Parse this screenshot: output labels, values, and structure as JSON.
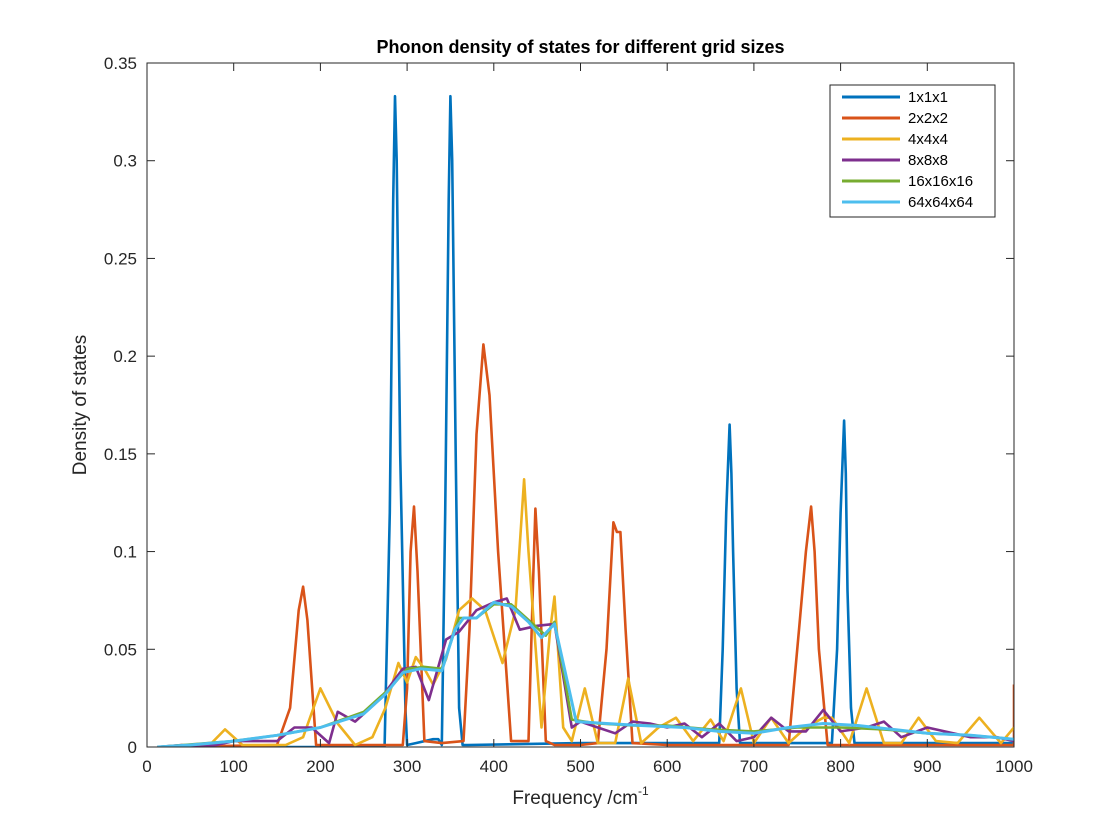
{
  "chart_data": {
    "type": "line",
    "title": "Phonon density of states for different grid sizes",
    "xlabel": "Frequency /cm",
    "xlabel_superscript": "-1",
    "ylabel": "Density of states",
    "xlim": [
      0,
      1000
    ],
    "ylim": [
      0,
      0.35
    ],
    "xticks": [
      0,
      100,
      200,
      300,
      400,
      500,
      600,
      700,
      800,
      900,
      1000
    ],
    "xtick_labels": [
      "0",
      "100",
      "200",
      "300",
      "400",
      "500",
      "600",
      "700",
      "800",
      "900",
      "1000"
    ],
    "yticks": [
      0,
      0.05,
      0.1,
      0.15,
      0.2,
      0.25,
      0.3,
      0.35
    ],
    "ytick_labels": [
      "0",
      "0.05",
      "0.1",
      "0.15",
      "0.2",
      "0.25",
      "0.3",
      "0.35"
    ],
    "grid": false,
    "legend_position": "top-right",
    "series": [
      {
        "name": "1x1x1",
        "color": "#0072BD",
        "x": [
          12,
          270,
          274,
          280,
          284,
          286,
          288,
          292,
          298,
          300,
          310,
          330,
          336,
          340,
          344,
          348,
          350,
          352,
          356,
          360,
          364,
          370,
          500,
          660,
          664,
          668,
          672,
          674,
          676,
          680,
          684,
          690,
          780,
          790,
          796,
          800,
          804,
          806,
          808,
          812,
          816,
          820,
          1000
        ],
        "y": [
          0,
          0,
          0.0005,
          0.12,
          0.28,
          0.333,
          0.3,
          0.15,
          0.02,
          0.001,
          0.002,
          0.004,
          0.004,
          0.001,
          0.12,
          0.28,
          0.333,
          0.3,
          0.15,
          0.02,
          0.001,
          0.001,
          0.002,
          0.002,
          0.05,
          0.12,
          0.165,
          0.14,
          0.1,
          0.03,
          0.002,
          0.002,
          0.002,
          0.002,
          0.05,
          0.12,
          0.167,
          0.14,
          0.08,
          0.02,
          0.002,
          0.002,
          0.002
        ]
      },
      {
        "name": "2x2x2",
        "color": "#D95319",
        "x": [
          12,
          150,
          165,
          175,
          180,
          185,
          195,
          260,
          285,
          295,
          300,
          304,
          308,
          312,
          320,
          340,
          365,
          372,
          380,
          388,
          395,
          405,
          420,
          440,
          445,
          448,
          452,
          460,
          470,
          500,
          520,
          530,
          538,
          542,
          546,
          552,
          560,
          600,
          740,
          752,
          760,
          766,
          770,
          775,
          785,
          1000,
          1000
        ],
        "y": [
          0,
          0.001,
          0.02,
          0.07,
          0.082,
          0.065,
          0.001,
          0.001,
          0.001,
          0.001,
          0.03,
          0.1,
          0.123,
          0.09,
          0.003,
          0.002,
          0.003,
          0.06,
          0.16,
          0.206,
          0.18,
          0.1,
          0.003,
          0.003,
          0.08,
          0.122,
          0.09,
          0.003,
          0.001,
          0.001,
          0.002,
          0.05,
          0.115,
          0.11,
          0.11,
          0.06,
          0.002,
          0.001,
          0.001,
          0.06,
          0.1,
          0.123,
          0.1,
          0.05,
          0.001,
          0.001,
          0.032
        ]
      },
      {
        "name": "4x4x4",
        "color": "#EDB120",
        "x": [
          12,
          70,
          90,
          110,
          140,
          160,
          180,
          200,
          220,
          240,
          260,
          275,
          290,
          300,
          310,
          320,
          330,
          345,
          360,
          375,
          390,
          410,
          425,
          435,
          440,
          455,
          465,
          470,
          480,
          490,
          505,
          520,
          540,
          555,
          570,
          590,
          610,
          630,
          650,
          665,
          685,
          700,
          720,
          740,
          760,
          780,
          790,
          810,
          830,
          850,
          870,
          890,
          910,
          935,
          960,
          985,
          1000
        ],
        "y": [
          0,
          0,
          0.009,
          0.001,
          0.001,
          0.001,
          0.005,
          0.03,
          0.012,
          0.001,
          0.005,
          0.02,
          0.043,
          0.033,
          0.046,
          0.04,
          0.032,
          0.045,
          0.07,
          0.076,
          0.07,
          0.043,
          0.07,
          0.137,
          0.1,
          0.01,
          0.06,
          0.077,
          0.01,
          0.003,
          0.03,
          0.002,
          0.002,
          0.035,
          0.002,
          0.01,
          0.015,
          0.003,
          0.014,
          0.003,
          0.03,
          0.002,
          0.015,
          0.002,
          0.01,
          0.015,
          0.015,
          0.002,
          0.03,
          0.002,
          0.002,
          0.015,
          0.003,
          0.002,
          0.015,
          0.002,
          0.01
        ]
      },
      {
        "name": "8x8x8",
        "color": "#7E2F8E",
        "x": [
          12,
          40,
          60,
          80,
          100,
          130,
          150,
          170,
          190,
          210,
          220,
          240,
          270,
          295,
          310,
          325,
          345,
          360,
          380,
          400,
          415,
          430,
          450,
          470,
          490,
          500,
          520,
          540,
          560,
          580,
          600,
          620,
          640,
          660,
          680,
          700,
          720,
          740,
          760,
          780,
          800,
          830,
          850,
          870,
          900,
          950,
          980,
          1000
        ],
        "y": [
          0,
          0.001,
          0,
          0.001,
          0.003,
          0.003,
          0.003,
          0.01,
          0.01,
          0.002,
          0.018,
          0.013,
          0.025,
          0.04,
          0.041,
          0.024,
          0.055,
          0.059,
          0.07,
          0.074,
          0.076,
          0.06,
          0.062,
          0.063,
          0.01,
          0.013,
          0.01,
          0.007,
          0.013,
          0.012,
          0.01,
          0.012,
          0.005,
          0.012,
          0.003,
          0.005,
          0.015,
          0.008,
          0.008,
          0.019,
          0.008,
          0.01,
          0.013,
          0.005,
          0.01,
          0.005,
          0.005,
          0.003
        ]
      },
      {
        "name": "16x16x16",
        "color": "#77AC30",
        "x": [
          12,
          100,
          150,
          200,
          250,
          280,
          300,
          320,
          340,
          360,
          380,
          400,
          420,
          440,
          460,
          470,
          490,
          520,
          560,
          600,
          650,
          700,
          750,
          800,
          850,
          900,
          950,
          1000
        ],
        "y": [
          0,
          0.003,
          0.006,
          0.01,
          0.018,
          0.03,
          0.04,
          0.041,
          0.04,
          0.066,
          0.066,
          0.073,
          0.073,
          0.065,
          0.057,
          0.064,
          0.014,
          0.012,
          0.011,
          0.011,
          0.009,
          0.008,
          0.01,
          0.01,
          0.009,
          0.007,
          0.006,
          0.004
        ]
      },
      {
        "name": "64x64x64",
        "color": "#4DBEEE",
        "x": [
          12,
          50,
          100,
          150,
          200,
          250,
          275,
          295,
          315,
          340,
          355,
          365,
          380,
          400,
          420,
          440,
          455,
          470,
          495,
          530,
          570,
          620,
          660,
          700,
          740,
          780,
          820,
          860,
          900,
          950,
          1000
        ],
        "y": [
          0,
          0.001,
          0.003,
          0.006,
          0.01,
          0.017,
          0.027,
          0.038,
          0.04,
          0.039,
          0.06,
          0.066,
          0.066,
          0.074,
          0.072,
          0.064,
          0.056,
          0.063,
          0.013,
          0.012,
          0.011,
          0.01,
          0.008,
          0.007,
          0.01,
          0.012,
          0.011,
          0.009,
          0.007,
          0.006,
          0.004
        ]
      }
    ]
  }
}
